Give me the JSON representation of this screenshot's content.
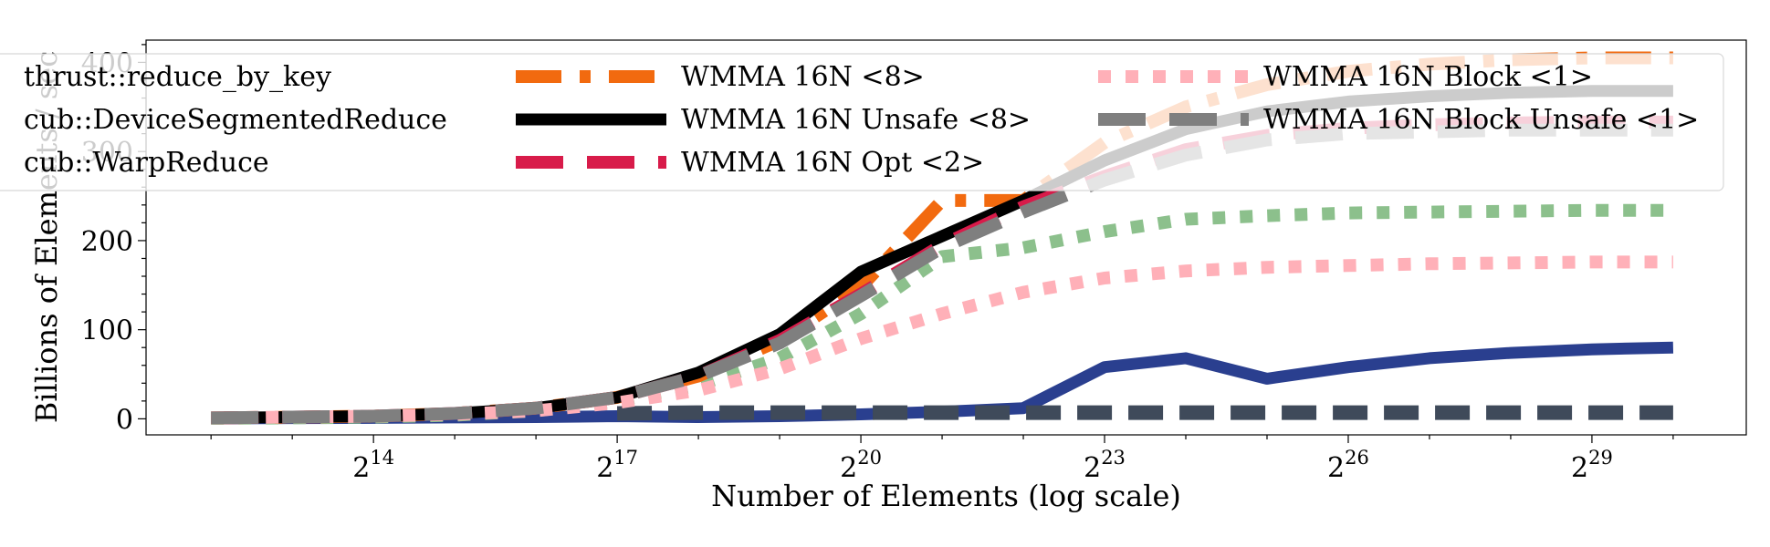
{
  "chart_data": {
    "type": "line",
    "title": "",
    "xlabel": "Number of Elements (log scale)",
    "ylabel": "Billions of Elements / sec",
    "x_scale": "log2",
    "x_tick_labels": [
      {
        "exp": 14,
        "base": "2",
        "sup": "14"
      },
      {
        "exp": 17,
        "base": "2",
        "sup": "17"
      },
      {
        "exp": 20,
        "base": "2",
        "sup": "20"
      },
      {
        "exp": 23,
        "base": "2",
        "sup": "23"
      },
      {
        "exp": 26,
        "base": "2",
        "sup": "26"
      },
      {
        "exp": 29,
        "base": "2",
        "sup": "29"
      }
    ],
    "y_ticks": [
      0,
      100,
      200,
      300,
      400
    ],
    "xlim_exp": [
      11.2,
      30.9
    ],
    "ylim": [
      -18,
      425
    ],
    "grid": false,
    "legend_placement": "top",
    "x_exp": [
      12,
      13,
      14,
      15,
      16,
      17,
      18,
      19,
      20,
      21,
      22,
      23,
      24,
      25,
      26,
      27,
      28,
      29,
      30
    ],
    "series": [
      {
        "name": "thrust::reduce_by_key",
        "color": "#2a3f8f",
        "opacity": 1,
        "width": 13,
        "dash": "none",
        "values": [
          0.5,
          0.8,
          1.0,
          1.5,
          2,
          3,
          2,
          3,
          5,
          8,
          12,
          58,
          68,
          45,
          58,
          68,
          74,
          78,
          80
        ]
      },
      {
        "name": "cub::DeviceSegmentedReduce",
        "color": "#3f4a5a",
        "opacity": 1,
        "width": 16,
        "dash": "38 18",
        "values": [
          null,
          null,
          null,
          null,
          null,
          6,
          7,
          7,
          7,
          7,
          7,
          7,
          7,
          7,
          7,
          7,
          7,
          7,
          7
        ]
      },
      {
        "name": "cub::WarpReduce",
        "color": "#8cc08c",
        "opacity": 1,
        "width": 14,
        "dash": "14 16",
        "values": [
          0.5,
          1,
          2,
          4,
          9,
          20,
          38,
          68,
          118,
          182,
          192,
          210,
          224,
          228,
          231,
          232,
          233,
          234,
          234
        ]
      },
      {
        "name": "WMMA 16N <8>",
        "color": "#f26a0f",
        "opacity": 1,
        "width": 14,
        "dash": "50 20 12 20",
        "values": [
          1,
          2,
          3,
          6,
          12,
          24,
          48,
          88,
          148,
          245,
          245,
          310,
          350,
          375,
          390,
          398,
          403,
          405,
          405
        ]
      },
      {
        "name": "WMMA 16N Unsafe <8>",
        "color": "#000000",
        "opacity": 1,
        "width": 13,
        "dash": "none",
        "values": [
          1,
          2,
          3,
          6,
          12,
          24,
          52,
          95,
          165,
          205,
          245,
          290,
          325,
          345,
          356,
          362,
          366,
          368,
          368
        ]
      },
      {
        "name": "WMMA 16N Opt <2>",
        "color": "#d81b4a",
        "opacity": 1,
        "width": 14,
        "dash": "52 26",
        "values": [
          1,
          2,
          3,
          6,
          12,
          24,
          48,
          88,
          140,
          195,
          238,
          272,
          302,
          318,
          326,
          330,
          332,
          333,
          333
        ]
      },
      {
        "name": "WMMA 16N Block <1>",
        "color": "#ffb0b8",
        "opacity": 1,
        "width": 14,
        "dash": "14 16",
        "values": [
          1,
          2,
          3,
          5,
          9,
          18,
          32,
          56,
          90,
          118,
          142,
          158,
          166,
          170,
          172,
          174,
          175,
          176,
          176
        ]
      },
      {
        "name": "WMMA 16N Block Unsafe <1>",
        "color": "#7f7f7f",
        "opacity": 1,
        "width": 14,
        "dash": "52 26",
        "values": [
          1,
          2,
          3,
          6,
          12,
          24,
          48,
          85,
          138,
          192,
          232,
          268,
          296,
          313,
          320,
          322,
          324,
          324,
          324
        ]
      }
    ],
    "legend": {
      "columns": [
        [
          "thrust::reduce_by_key",
          "cub::DeviceSegmentedReduce",
          "cub::WarpReduce"
        ],
        [
          "WMMA 16N <8>",
          "WMMA 16N Unsafe <8>",
          "WMMA 16N Opt <2>"
        ],
        [
          "WMMA 16N Block <1>",
          "WMMA 16N Block Unsafe <1>"
        ]
      ]
    }
  }
}
